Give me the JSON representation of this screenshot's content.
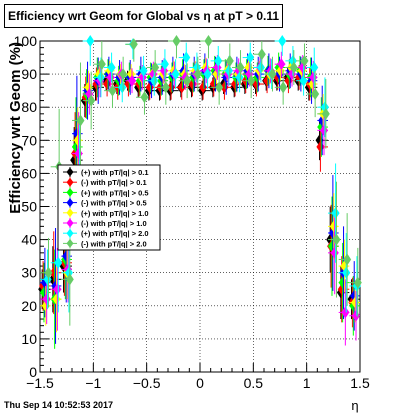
{
  "chart_data": {
    "type": "scatter",
    "title": "Efficiency wrt Geom for Global vs   η at pT > 0.11",
    "xlabel": "η",
    "ylabel": "Efficiency wrt Geom (%)",
    "xlim": [
      -1.5,
      1.5
    ],
    "ylim": [
      0,
      100
    ],
    "x_ticks": [
      "−1.5",
      "−1",
      "−0.5",
      "0",
      "0.5",
      "1",
      "1.5"
    ],
    "y_ticks": [
      "0",
      "10",
      "20",
      "30",
      "40",
      "50",
      "60",
      "70",
      "80",
      "90",
      "100"
    ],
    "grid": true,
    "legend_position": "left-middle",
    "series": [
      {
        "name": "(+) with pT/|q| > 0.1",
        "color": "#000000",
        "x": [
          -1.45,
          -1.35,
          -1.25,
          -1.15,
          -1.05,
          -0.95,
          -0.85,
          -0.75,
          -0.65,
          -0.55,
          -0.45,
          -0.35,
          -0.25,
          -0.15,
          -0.05,
          0.05,
          0.15,
          0.25,
          0.35,
          0.45,
          0.55,
          0.65,
          0.75,
          0.85,
          0.95,
          1.05,
          1.15,
          1.25,
          1.35,
          1.45
        ],
        "y": [
          25,
          28,
          32,
          64,
          82,
          86,
          88,
          87,
          88,
          86,
          85,
          85,
          85,
          86,
          86,
          85,
          86,
          87,
          86,
          87,
          87,
          88,
          88,
          89,
          88,
          86,
          70,
          40,
          24,
          22
        ]
      },
      {
        "name": "(-) with pT/|q| > 0.1",
        "color": "#ff0000",
        "x": [
          -1.45,
          -1.35,
          -1.25,
          -1.15,
          -1.05,
          -0.95,
          -0.85,
          -0.75,
          -0.65,
          -0.55,
          -0.45,
          -0.35,
          -0.25,
          -0.15,
          -0.05,
          0.05,
          0.15,
          0.25,
          0.35,
          0.45,
          0.55,
          0.65,
          0.75,
          0.85,
          0.95,
          1.05,
          1.15,
          1.25,
          1.35,
          1.45
        ],
        "y": [
          26,
          30,
          33,
          66,
          83,
          87,
          87,
          86,
          87,
          87,
          86,
          86,
          86,
          86,
          87,
          86,
          87,
          86,
          87,
          88,
          87,
          88,
          89,
          88,
          89,
          87,
          68,
          38,
          25,
          21
        ]
      },
      {
        "name": "(+) with pT/|q| > 0.5",
        "color": "#00ff00",
        "x": [
          -1.45,
          -1.35,
          -1.25,
          -1.15,
          -1.05,
          -0.95,
          -0.85,
          -0.75,
          -0.65,
          -0.55,
          -0.45,
          -0.35,
          -0.25,
          -0.15,
          -0.05,
          0.05,
          0.15,
          0.25,
          0.35,
          0.45,
          0.55,
          0.65,
          0.75,
          0.85,
          0.95,
          1.05,
          1.15,
          1.25,
          1.35,
          1.45
        ],
        "y": [
          24,
          22,
          34,
          68,
          84,
          89,
          90,
          88,
          89,
          88,
          89,
          88,
          89,
          90,
          89,
          90,
          91,
          90,
          89,
          90,
          89,
          91,
          92,
          90,
          91,
          89,
          74,
          38,
          27,
          20
        ]
      },
      {
        "name": "(-) with pT/|q| > 0.5",
        "color": "#0000ff",
        "x": [
          -1.45,
          -1.35,
          -1.25,
          -1.15,
          -1.05,
          -0.95,
          -0.85,
          -0.75,
          -0.65,
          -0.55,
          -0.45,
          -0.35,
          -0.25,
          -0.15,
          -0.05,
          0.05,
          0.15,
          0.25,
          0.35,
          0.45,
          0.55,
          0.65,
          0.75,
          0.85,
          0.95,
          1.05,
          1.15,
          1.25,
          1.35,
          1.45
        ],
        "y": [
          27,
          26,
          35,
          72,
          85,
          88,
          90,
          89,
          89,
          90,
          88,
          89,
          90,
          91,
          90,
          91,
          90,
          89,
          90,
          91,
          90,
          91,
          90,
          91,
          90,
          88,
          76,
          42,
          30,
          23
        ]
      },
      {
        "name": "(+) with pT/|q| > 1.0",
        "color": "#ffff00",
        "x": [
          -1.45,
          -1.35,
          -1.25,
          -1.15,
          -1.05,
          -0.95,
          -0.85,
          -0.75,
          -0.65,
          -0.55,
          -0.45,
          -0.35,
          -0.25,
          -0.15,
          -0.05,
          0.05,
          0.15,
          0.25,
          0.35,
          0.45,
          0.55,
          0.65,
          0.75,
          0.85,
          0.95,
          1.05,
          1.15,
          1.25,
          1.35,
          1.45
        ],
        "y": [
          20,
          22,
          30,
          70,
          86,
          90,
          91,
          90,
          90,
          89,
          90,
          90,
          91,
          90,
          91,
          92,
          90,
          91,
          90,
          92,
          91,
          90,
          91,
          92,
          91,
          87,
          78,
          44,
          32,
          21
        ]
      },
      {
        "name": "(-) with pT/|q| > 1.0",
        "color": "#ff00ff",
        "x": [
          -1.45,
          -1.35,
          -1.25,
          -1.15,
          -1.05,
          -0.95,
          -0.85,
          -0.75,
          -0.65,
          -0.55,
          -0.45,
          -0.35,
          -0.25,
          -0.15,
          -0.05,
          0.05,
          0.15,
          0.25,
          0.35,
          0.45,
          0.55,
          0.65,
          0.75,
          0.85,
          0.95,
          1.05,
          1.15,
          1.25,
          1.35,
          1.45
        ],
        "y": [
          22,
          25,
          31,
          66,
          84,
          88,
          89,
          90,
          88,
          89,
          90,
          91,
          90,
          89,
          90,
          91,
          92,
          90,
          91,
          90,
          92,
          91,
          93,
          90,
          92,
          89,
          73,
          36,
          18,
          17
        ]
      },
      {
        "name": "(+) with pT/|q| > 2.0",
        "color": "#00ffff",
        "x": [
          -1.45,
          -1.35,
          -1.25,
          -1.15,
          -1.05,
          -0.95,
          -0.85,
          -0.75,
          -0.65,
          -0.55,
          -0.45,
          -0.35,
          -0.25,
          -0.15,
          -0.05,
          0.05,
          0.15,
          0.25,
          0.35,
          0.45,
          0.55,
          0.65,
          0.75,
          0.85,
          0.95,
          1.05,
          1.15,
          1.25,
          1.35,
          1.45
        ],
        "y": [
          28,
          33,
          30,
          60,
          100,
          89,
          92,
          86,
          99,
          91,
          88,
          93,
          90,
          95,
          92,
          90,
          94,
          91,
          89,
          95,
          92,
          90,
          100,
          94,
          88,
          92,
          80,
          48,
          30,
          26
        ]
      },
      {
        "name": "(-) with pT/|q| > 2.0",
        "color": "#66cc66",
        "x": [
          -1.45,
          -1.35,
          -1.25,
          -1.15,
          -1.05,
          -0.95,
          -0.85,
          -0.75,
          -0.65,
          -0.55,
          -0.45,
          -0.35,
          -0.25,
          -0.15,
          -0.05,
          0.05,
          0.15,
          0.25,
          0.35,
          0.45,
          0.55,
          0.65,
          0.75,
          0.85,
          0.95,
          1.05,
          1.15,
          1.25,
          1.35,
          1.45
        ],
        "y": [
          30,
          62,
          28,
          76,
          82,
          93,
          85,
          90,
          99,
          83,
          92,
          86,
          100,
          88,
          90,
          100,
          86,
          94,
          92,
          88,
          96,
          90,
          86,
          92,
          94,
          84,
          78,
          40,
          34,
          27
        ]
      }
    ],
    "error_half": [
      6,
      10,
      8,
      10,
      5,
      4,
      3,
      3,
      3,
      3,
      3,
      3,
      3,
      3,
      3,
      3,
      3,
      3,
      3,
      3,
      3,
      3,
      3,
      3,
      3,
      4,
      6,
      10,
      8,
      6
    ]
  },
  "footer": {
    "date": "Thu Sep 14 10:52:53 2017"
  }
}
